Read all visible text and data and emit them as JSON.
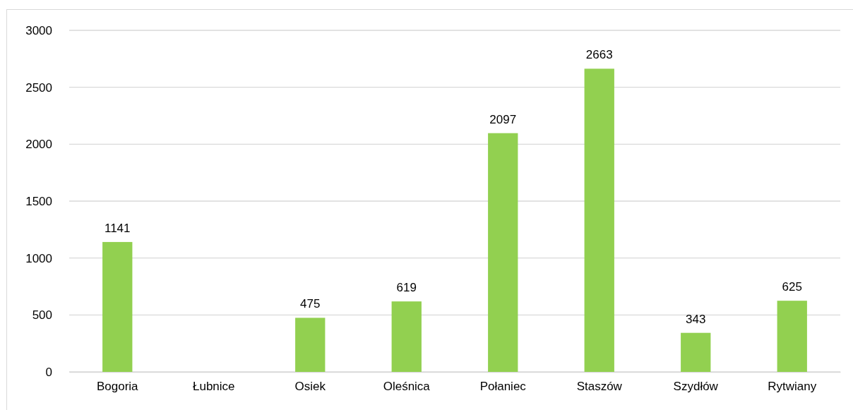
{
  "chart_data": {
    "type": "bar",
    "categories": [
      "Bogoria",
      "Łubnice",
      "Osiek",
      "Oleśnica",
      "Połaniec",
      "Staszów",
      "Szydłów",
      "Rytwiany"
    ],
    "values": [
      1141,
      null,
      475,
      619,
      2097,
      2663,
      343,
      625
    ],
    "color": "#92d050",
    "ylim": [
      0,
      3000
    ],
    "yticks": [
      0,
      500,
      1000,
      1500,
      2000,
      2500,
      3000
    ],
    "grid": "y",
    "data_labels": true
  }
}
